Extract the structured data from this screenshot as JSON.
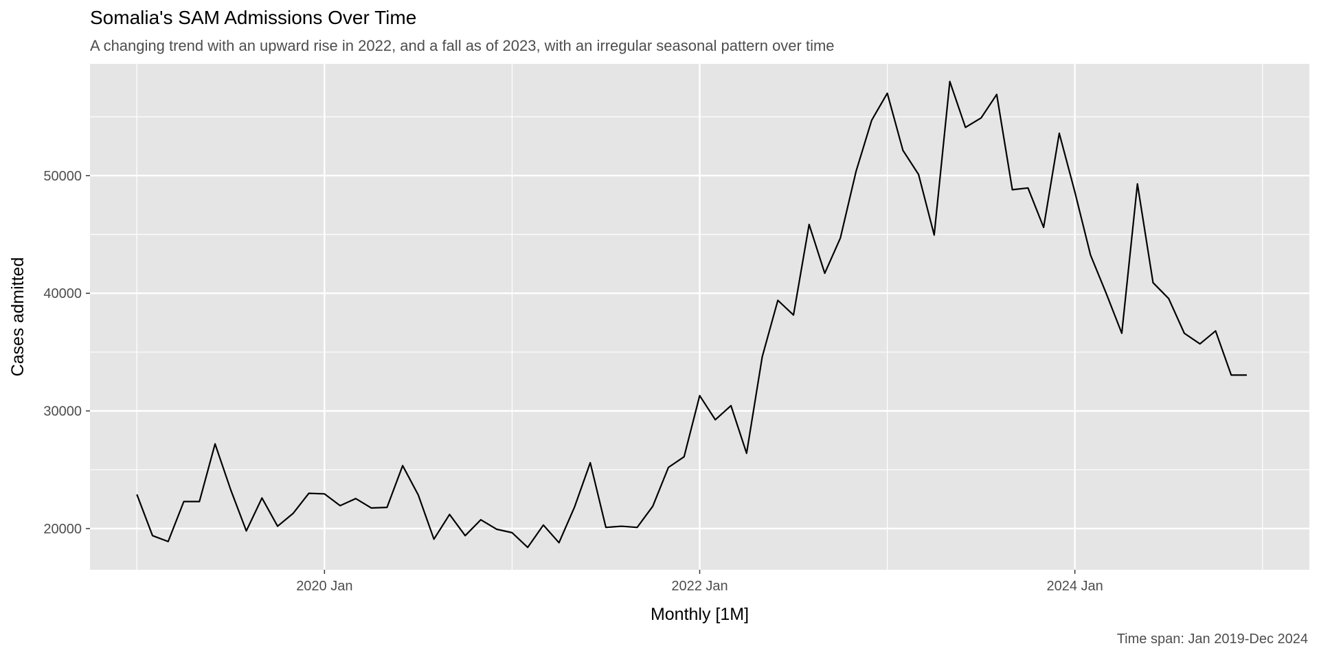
{
  "chart_data": {
    "type": "line",
    "title": "Somalia's SAM Admissions Over Time",
    "subtitle": "A changing trend with an upward rise in 2022, and a fall as of 2023, with an irregular seasonal pattern over time",
    "caption": "Time span: Jan 2019-Dec 2024",
    "xlabel": "Monthly [1M]",
    "ylabel": "Cases admitted",
    "x_start": "2019-01",
    "x_end": "2024-12",
    "xlim": [
      "2018-10",
      "2025-04"
    ],
    "ylim": [
      16500,
      59500
    ],
    "x_tick_labels": [
      {
        "date": "2020-01",
        "label": "2020 Jan"
      },
      {
        "date": "2022-01",
        "label": "2022 Jan"
      },
      {
        "date": "2024-01",
        "label": "2024 Jan"
      }
    ],
    "x_minor_ticks": [
      "2019-01",
      "2021-01",
      "2023-01",
      "2025-01"
    ],
    "y_ticks": [
      20000,
      30000,
      40000,
      50000
    ],
    "y_minor_ticks": [
      25000,
      35000,
      45000,
      55000
    ],
    "grid": true,
    "colors": {
      "panel": "#e5e5e5",
      "grid": "#ffffff",
      "line": "#000000"
    },
    "series": [
      {
        "values": [
          22900,
          19400,
          18900,
          22300,
          22300,
          27200,
          23300,
          19800,
          22600,
          20200,
          21300,
          23000,
          22950,
          21950,
          22550,
          21750,
          21800,
          25350,
          22850,
          19100,
          21200,
          19400,
          20750,
          19950,
          19650,
          18400,
          20300,
          18800,
          21850,
          25600,
          20100,
          20200,
          20100,
          21900,
          25200,
          26100,
          31300,
          29250,
          30450,
          26400,
          34600,
          39400,
          38150,
          45850,
          41700,
          44700,
          50350,
          54700,
          57000,
          52150,
          50100,
          44950,
          58000,
          54100,
          54900,
          56900,
          48800,
          48950,
          45600,
          53600,
          48600,
          43250,
          40000,
          36600,
          49300,
          40900,
          39550,
          36600,
          35700,
          36800,
          33050,
          33050
        ]
      }
    ]
  }
}
